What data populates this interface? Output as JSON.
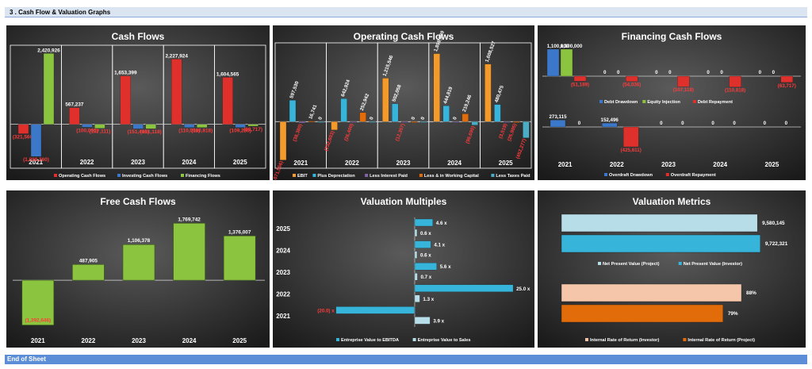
{
  "section_title": "3 .  Cash Flow & Valuation Graphs",
  "end_label": "End of Sheet",
  "chart_data": [
    {
      "id": "cash_flows",
      "type": "bar",
      "title": "Cash Flows",
      "categories": [
        "2021",
        "2022",
        "2023",
        "2024",
        "2025"
      ],
      "ylim": [
        -1500000,
        2700000
      ],
      "series": [
        {
          "name": "Operating Cash Flows",
          "color": "#e0302c",
          "values": [
            -321566,
            567237,
            1653399,
            2227924,
            1604565
          ],
          "labels": [
            "(321,566)",
            "567,237",
            "1,653,399",
            "2,227,924",
            "1,604,565"
          ]
        },
        {
          "name": "Investing Cash Flows",
          "color": "#3b78c9",
          "values": [
            -1099360,
            -100000,
            -151400,
            -110000,
            -109280
          ],
          "labels": [
            "(1,099,360)",
            "(100,000)",
            "(151,400)",
            "(110,000)",
            "(109,280)"
          ]
        },
        {
          "name": "Financing Flows",
          "color": "#8bc43f",
          "values": [
            2420926,
            -137111,
            -151118,
            -110818,
            -63717
          ],
          "labels": [
            "2,420,926",
            "(137,111)",
            "(151,118)",
            "(110,818)",
            "(63,717)"
          ]
        }
      ]
    },
    {
      "id": "operating_cash_flows",
      "type": "bar",
      "title": "Operating Cash Flows",
      "categories": [
        "2021",
        "2022",
        "2023",
        "2024",
        "2025"
      ],
      "ylim": [
        -1300000,
        2200000
      ],
      "series": [
        {
          "name": "EBIT",
          "color": "#f39a2a",
          "values": [
            -1071556,
            -232603,
            1215546,
            1899689,
            1608527
          ],
          "labels": [
            "(1,071,556)",
            "(232,603)",
            "1,215,546",
            "1,899,689",
            "1,608,527"
          ]
        },
        {
          "name": "Plus Depreciation",
          "color": "#36b4d9",
          "values": [
            597530,
            642924,
            502058,
            444819,
            480475
          ],
          "labels": [
            "597,530",
            "642,924",
            "502,058",
            "444,819",
            "480,475"
          ]
        },
        {
          "name": "Less Interest Paid",
          "color": "#8064a2",
          "values": [
            -38380,
            -26400,
            -12357,
            0,
            -3519
          ],
          "labels": [
            "(38,380)",
            "(26,400)",
            "(12,357)",
            "0",
            "(3,519)"
          ]
        },
        {
          "name": "Less & in Working Capital",
          "color": "#e36c0a",
          "values": [
            16741,
            252942,
            0,
            219246,
            -25905
          ],
          "labels": [
            "16,741",
            "252,942",
            "0",
            "219,246",
            "(25,905)"
          ]
        },
        {
          "name": "Less Taxes Paid",
          "color": "#4bacc6",
          "values": [
            0,
            0,
            0,
            -96690,
            -452277
          ],
          "labels": [
            "0",
            "0",
            "0",
            "(96,690)",
            "(452,277)"
          ]
        }
      ]
    },
    {
      "id": "financing_cash_flows",
      "type": "bar",
      "title": "Financing Cash Flows",
      "categories": [
        "2021",
        "2022",
        "2023",
        "2024",
        "2025"
      ],
      "series": [
        {
          "name": "Debt Drawdown",
          "color": "#3b78c9",
          "values": [
            1100000,
            0,
            0,
            0,
            0
          ],
          "labels": [
            "1,100,000",
            "0",
            "0",
            "0",
            "0"
          ]
        },
        {
          "name": "Equity Injection",
          "color": "#8bc43f",
          "values": [
            1100000,
            0,
            0,
            0,
            0
          ],
          "labels": [
            "1,100,000",
            "0",
            "0",
            "0",
            "0"
          ]
        },
        {
          "name": "Debt Repayment",
          "color": "#e0302c",
          "values": [
            -51189,
            -54036,
            -107118,
            -110818,
            -63717
          ],
          "labels": [
            "(51,189)",
            "(54,036)",
            "(107,118)",
            "(110,818)",
            "(63,717)"
          ]
        },
        {
          "name": "Overdraft Drawdown",
          "color": "#3b78c9",
          "values": [
            273115,
            152496,
            0,
            0,
            0
          ],
          "labels": [
            "273,115",
            "152,496",
            "0",
            "0",
            "0"
          ]
        },
        {
          "name": "Overdraft Repayment",
          "color": "#e0302c",
          "values": [
            0,
            -425611,
            0,
            0,
            0
          ],
          "labels": [
            "0",
            "(425,611)",
            "0",
            "0",
            "0"
          ]
        }
      ]
    },
    {
      "id": "free_cash_flows",
      "type": "bar",
      "title": "Free Cash Flows",
      "categories": [
        "2021",
        "2022",
        "2023",
        "2024",
        "2025"
      ],
      "ylim": [
        -1600000,
        2000000
      ],
      "values": [
        -1392646,
        487905,
        1106378,
        1769742,
        1376007
      ],
      "labels": [
        "(1,392,646)",
        "487,905",
        "1,106,378",
        "1,769,742",
        "1,376,007"
      ],
      "color": "#8bc43f"
    },
    {
      "id": "valuation_multiples",
      "type": "bar",
      "orientation": "horizontal",
      "title": "Valuation Multiples",
      "categories": [
        "2025",
        "2024",
        "2023",
        "2022",
        "2021"
      ],
      "xlim": [
        -30,
        28
      ],
      "series": [
        {
          "name": "Entreprise Value to EBITDA",
          "color": "#36b4d9",
          "values": [
            4.6,
            4.1,
            5.6,
            25.0,
            -20.0
          ],
          "labels": [
            "4.6 x",
            "4.1 x",
            "5.6 x",
            "25.0 x",
            "(20.0) x"
          ]
        },
        {
          "name": "Entreprise Value to Sales",
          "color": "#b7dde8",
          "values": [
            0.6,
            0.6,
            0.7,
            1.3,
            3.9
          ],
          "labels": [
            "0.6 x",
            "0.6 x",
            "0.7 x",
            "1.3 x",
            "3.9 x"
          ]
        }
      ]
    },
    {
      "id": "valuation_metrics",
      "type": "bar",
      "orientation": "horizontal",
      "title": "Valuation Metrics",
      "groups": [
        {
          "bars": [
            {
              "name": "Net Present Value (Project)",
              "color": "#b7dde8",
              "value": 9580145,
              "label": "9,580,145"
            },
            {
              "name": "Net Present Value (Investor)",
              "color": "#36b4d9",
              "value": 9722321,
              "label": "9,722,321"
            }
          ],
          "max": 10000000
        },
        {
          "bars": [
            {
              "name": "Internal Rate of Return (Investor)",
              "color": "#f5c6aa",
              "value": 88,
              "label": "88%"
            },
            {
              "name": "Internal Rate of Return (Project)",
              "color": "#e36c0a",
              "value": 79,
              "label": "79%"
            }
          ],
          "max": 100
        }
      ]
    }
  ]
}
